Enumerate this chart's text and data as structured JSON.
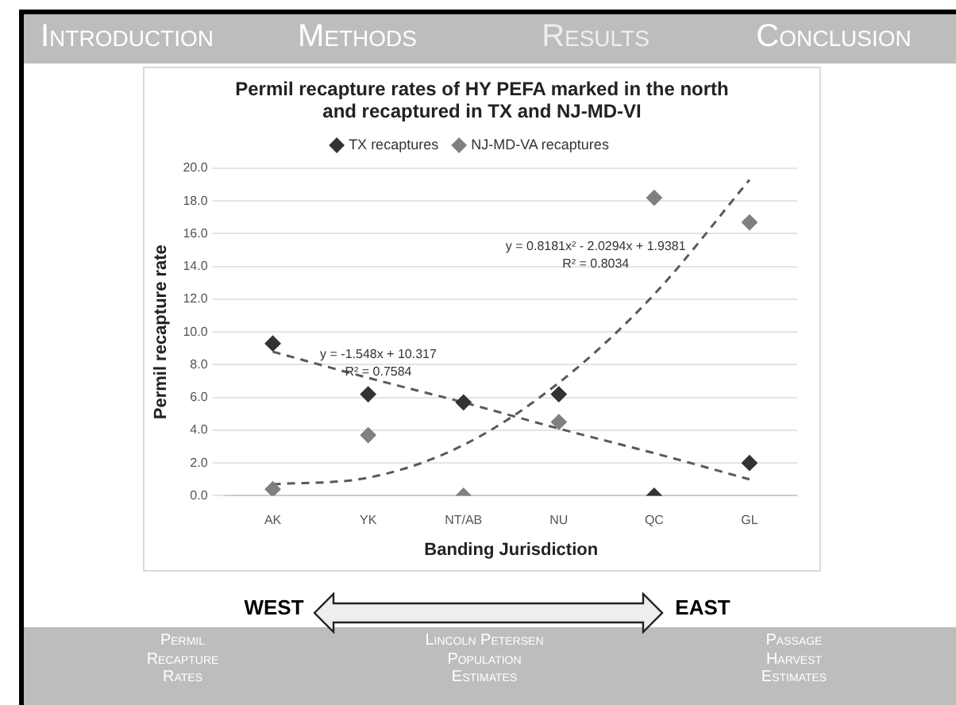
{
  "chart_data": {
    "type": "scatter",
    "title": "Permil recapture rates of HY PEFA marked in the north and recaptured in TX and NJ-MD-VI",
    "xlabel": "Banding Jurisdiction",
    "ylabel": "Permil recapture rate",
    "categories": [
      "AK",
      "YK",
      "NT/AB",
      "NU",
      "QC",
      "GL"
    ],
    "series": [
      {
        "name": "TX recaptures",
        "color": "#333333",
        "values": [
          9.3,
          6.2,
          5.7,
          6.2,
          0,
          2.0
        ]
      },
      {
        "name": "NJ-MD-VA recaptures",
        "color": "#808080",
        "values": [
          0.4,
          3.7,
          0,
          4.5,
          18.2,
          16.7
        ]
      },
      {
        "type": "line",
        "color": "#595959",
        "values": [
          8.8,
          7.2,
          5.7,
          4.1,
          2.6,
          1.0
        ],
        "line_style": "dashed",
        "marker": "none"
      },
      {
        "type": "line",
        "color": "#595959",
        "values": [
          0.7,
          1.1,
          3.1,
          6.9,
          12.3,
          19.3
        ],
        "line_style": "dashed",
        "marker": "none"
      }
    ],
    "marker": "diamond",
    "ylim": [
      0,
      20
    ],
    "yticks": [
      {
        "value": 0,
        "label": "0.0"
      },
      {
        "value": 2,
        "label": "2.0"
      },
      {
        "value": 4,
        "label": "4.0"
      },
      {
        "value": 6,
        "label": "6.0"
      },
      {
        "value": 8,
        "label": "8.0"
      },
      {
        "value": 10,
        "label": "10.0"
      },
      {
        "value": 12,
        "label": "12.0"
      },
      {
        "value": 14,
        "label": "14.0"
      },
      {
        "value": 16,
        "label": "16.0"
      },
      {
        "value": 18,
        "label": "18.0"
      },
      {
        "value": 20,
        "label": "20.0"
      }
    ],
    "grid": "y",
    "legend": "top",
    "annotations": [
      "y = -1.548x + 10.317\nR² = 0.7584",
      "y = 0.8181x² - 2.0294x + 1.9381\nR² = 0.8034",
      "Introduction",
      "Methods",
      "Results",
      "Conclusion",
      "WEST",
      "EAST",
      "Permil\nRecapture\nRates",
      "Lincoln Petersen\nPopulation\nEstimates",
      "Passage\nHarvest\nEstimates"
    ]
  }
}
